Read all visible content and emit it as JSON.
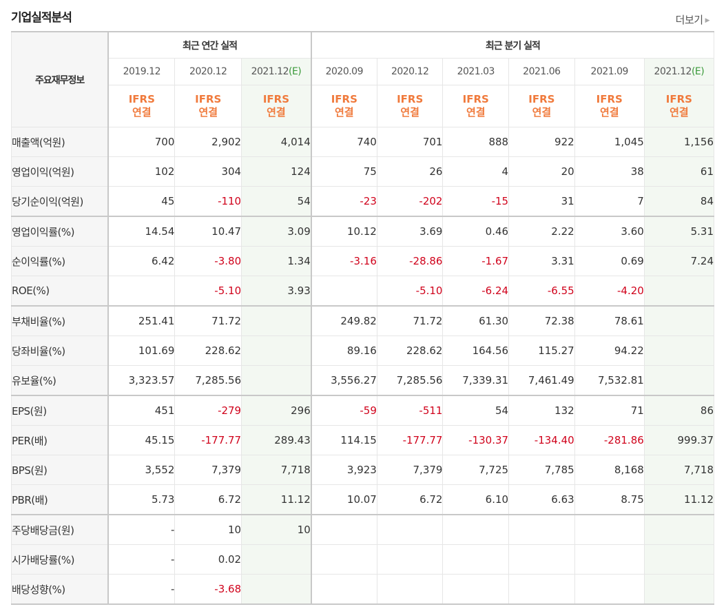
{
  "page_title": "기업실적분석",
  "more_link": "더보기",
  "more_arrow": "▶",
  "header": {
    "corner_label": "주요재무정보",
    "annual_group": "최근 연간 실적",
    "quarter_group": "최근 분기 실적",
    "annual_periods": [
      {
        "label": "2019.12",
        "est": ""
      },
      {
        "label": "2020.12",
        "est": ""
      },
      {
        "label": "2021.12",
        "est": "(E)"
      }
    ],
    "quarter_periods": [
      {
        "label": "2020.09",
        "est": ""
      },
      {
        "label": "2020.12",
        "est": ""
      },
      {
        "label": "2021.03",
        "est": ""
      },
      {
        "label": "2021.06",
        "est": ""
      },
      {
        "label": "2021.09",
        "est": ""
      },
      {
        "label": "2021.12",
        "est": "(E)"
      }
    ],
    "ifrs_line1": "IFRS",
    "ifrs_line2": "연결"
  },
  "rows": [
    {
      "label": "매출액(억원)",
      "group_start": false,
      "values": [
        "700",
        "2,902",
        "4,014",
        "740",
        "701",
        "888",
        "922",
        "1,045",
        "1,156"
      ]
    },
    {
      "label": "영업이익(억원)",
      "group_start": false,
      "values": [
        "102",
        "304",
        "124",
        "75",
        "26",
        "4",
        "20",
        "38",
        "61"
      ]
    },
    {
      "label": "당기순이익(억원)",
      "group_start": false,
      "values": [
        "45",
        "-110",
        "54",
        "-23",
        "-202",
        "-15",
        "31",
        "7",
        "84"
      ]
    },
    {
      "label": "영업이익률(%)",
      "group_start": true,
      "values": [
        "14.54",
        "10.47",
        "3.09",
        "10.12",
        "3.69",
        "0.46",
        "2.22",
        "3.60",
        "5.31"
      ]
    },
    {
      "label": "순이익률(%)",
      "group_start": false,
      "values": [
        "6.42",
        "-3.80",
        "1.34",
        "-3.16",
        "-28.86",
        "-1.67",
        "3.31",
        "0.69",
        "7.24"
      ]
    },
    {
      "label": "ROE(%)",
      "group_start": false,
      "values": [
        "",
        "-5.10",
        "3.93",
        "",
        "-5.10",
        "-6.24",
        "-6.55",
        "-4.20",
        ""
      ]
    },
    {
      "label": "부채비율(%)",
      "group_start": true,
      "values": [
        "251.41",
        "71.72",
        "",
        "249.82",
        "71.72",
        "61.30",
        "72.38",
        "78.61",
        ""
      ]
    },
    {
      "label": "당좌비율(%)",
      "group_start": false,
      "values": [
        "101.69",
        "228.62",
        "",
        "89.16",
        "228.62",
        "164.56",
        "115.27",
        "94.22",
        ""
      ]
    },
    {
      "label": "유보율(%)",
      "group_start": false,
      "values": [
        "3,323.57",
        "7,285.56",
        "",
        "3,556.27",
        "7,285.56",
        "7,339.31",
        "7,461.49",
        "7,532.81",
        ""
      ]
    },
    {
      "label": "EPS(원)",
      "group_start": true,
      "values": [
        "451",
        "-279",
        "296",
        "-59",
        "-511",
        "54",
        "132",
        "71",
        "86"
      ]
    },
    {
      "label": "PER(배)",
      "group_start": false,
      "values": [
        "45.15",
        "-177.77",
        "289.43",
        "114.15",
        "-177.77",
        "-130.37",
        "-134.40",
        "-281.86",
        "999.37"
      ]
    },
    {
      "label": "BPS(원)",
      "group_start": false,
      "values": [
        "3,552",
        "7,379",
        "7,718",
        "3,923",
        "7,379",
        "7,725",
        "7,785",
        "8,168",
        "7,718"
      ]
    },
    {
      "label": "PBR(배)",
      "group_start": false,
      "values": [
        "5.73",
        "6.72",
        "11.12",
        "10.07",
        "6.72",
        "6.10",
        "6.63",
        "8.75",
        "11.12"
      ]
    },
    {
      "label": "주당배당금(원)",
      "group_start": true,
      "values": [
        "-",
        "10",
        "10",
        "",
        "",
        "",
        "",
        "",
        ""
      ]
    },
    {
      "label": "시가배당률(%)",
      "group_start": false,
      "values": [
        "-",
        "0.02",
        "",
        "",
        "",
        "",
        "",
        "",
        ""
      ]
    },
    {
      "label": "배당성향(%)",
      "group_start": false,
      "values": [
        "-",
        "-3.68",
        "",
        "",
        "",
        "",
        "",
        "",
        ""
      ]
    }
  ],
  "colors": {
    "negative": "#d0021b",
    "ifrs": "#f07a3c",
    "estimate_marker": "#3a9a3a",
    "estimate_column_bg": "#f3f8f2",
    "label_bg": "#f6f6f6"
  }
}
